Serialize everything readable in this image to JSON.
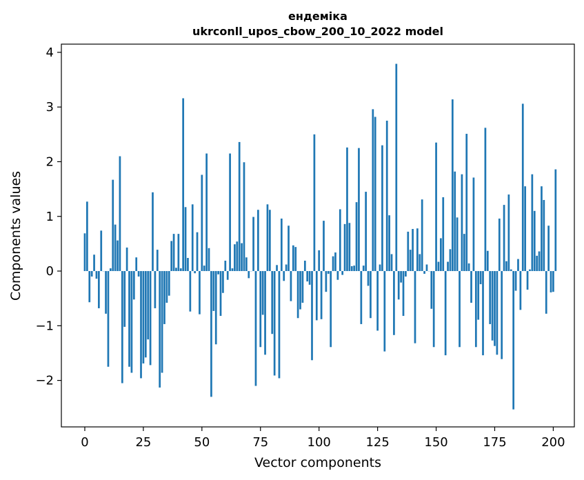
{
  "colors": {
    "bar": "#1f77b4",
    "axes": "#000000",
    "background": "#ffffff"
  },
  "chart_data": {
    "type": "bar",
    "title": "ендеміка",
    "subtitle": "ukrconll_upos_cbow_200_10_2022 model",
    "xlabel": "Vector components",
    "ylabel": "Components values",
    "xlim": [
      -10,
      209
    ],
    "ylim": [
      -2.85,
      4.15
    ],
    "xticks": [
      0,
      25,
      50,
      75,
      100,
      125,
      150,
      175,
      200
    ],
    "yticks": [
      -2,
      -1,
      0,
      1,
      2,
      3,
      4
    ],
    "xtick_labels": [
      "0",
      "25",
      "50",
      "75",
      "100",
      "125",
      "150",
      "175",
      "200"
    ],
    "ytick_labels": [
      "−2",
      "−1",
      "0",
      "1",
      "2",
      "3",
      "4"
    ],
    "grid": false,
    "legend": "none",
    "x_start": 0,
    "values": [
      0.69,
      1.27,
      -0.57,
      -0.1,
      0.3,
      -0.14,
      -0.68,
      0.74,
      0.0,
      -0.78,
      -1.75,
      0.05,
      1.67,
      0.85,
      0.56,
      2.1,
      -2.05,
      -1.02,
      0.43,
      -1.75,
      -1.86,
      -0.52,
      0.25,
      -0.1,
      -1.96,
      -1.69,
      -1.58,
      -1.25,
      -1.72,
      1.44,
      -0.68,
      0.39,
      -2.13,
      -1.86,
      -0.97,
      -0.58,
      -0.45,
      0.55,
      0.68,
      0.06,
      0.68,
      0.05,
      3.16,
      1.17,
      0.24,
      -0.74,
      1.22,
      -0.04,
      0.71,
      -0.79,
      1.76,
      0.1,
      2.15,
      0.42,
      -2.3,
      -0.73,
      -1.34,
      -0.06,
      -0.82,
      -0.4,
      0.19,
      -0.16,
      2.15,
      0.05,
      0.49,
      0.54,
      2.36,
      0.51,
      1.99,
      0.25,
      -0.13,
      0.0,
      0.99,
      -2.1,
      1.12,
      -1.39,
      -0.8,
      -1.53,
      1.22,
      1.12,
      -1.15,
      -1.91,
      0.11,
      -1.96,
      0.96,
      -0.18,
      0.12,
      0.83,
      -0.55,
      0.47,
      0.44,
      -0.86,
      -0.7,
      -0.58,
      0.19,
      -0.19,
      -0.25,
      -1.63,
      2.5,
      -0.9,
      0.38,
      -0.88,
      0.92,
      -0.38,
      -0.05,
      -1.39,
      0.27,
      0.34,
      -0.16,
      1.13,
      -0.07,
      0.86,
      2.26,
      0.88,
      0.09,
      0.1,
      1.26,
      2.25,
      -0.97,
      0.1,
      1.45,
      -0.27,
      -0.86,
      2.96,
      2.82,
      -1.09,
      0.12,
      2.3,
      -1.47,
      2.75,
      1.02,
      0.31,
      -1.17,
      3.79,
      -0.52,
      -0.21,
      -0.82,
      -0.1,
      0.72,
      0.39,
      0.77,
      -1.32,
      0.78,
      0.31,
      1.31,
      -0.05,
      0.12,
      0.0,
      -0.69,
      -1.39,
      2.35,
      0.17,
      0.6,
      1.35,
      -1.54,
      0.17,
      0.4,
      3.14,
      1.82,
      0.98,
      -1.39,
      1.77,
      0.68,
      2.51,
      0.14,
      -0.58,
      1.71,
      -1.39,
      -0.89,
      -0.24,
      -1.54,
      2.62,
      0.37,
      -0.97,
      -1.27,
      -1.37,
      -1.53,
      0.96,
      -1.61,
      1.21,
      0.18,
      1.4,
      0.03,
      -2.53,
      -0.36,
      0.22,
      -0.71,
      3.06,
      1.55,
      -0.34,
      0.03,
      1.77,
      1.1,
      0.28,
      0.36,
      1.55,
      1.3,
      -0.78,
      0.83,
      -0.39,
      -0.38,
      1.86
    ]
  }
}
